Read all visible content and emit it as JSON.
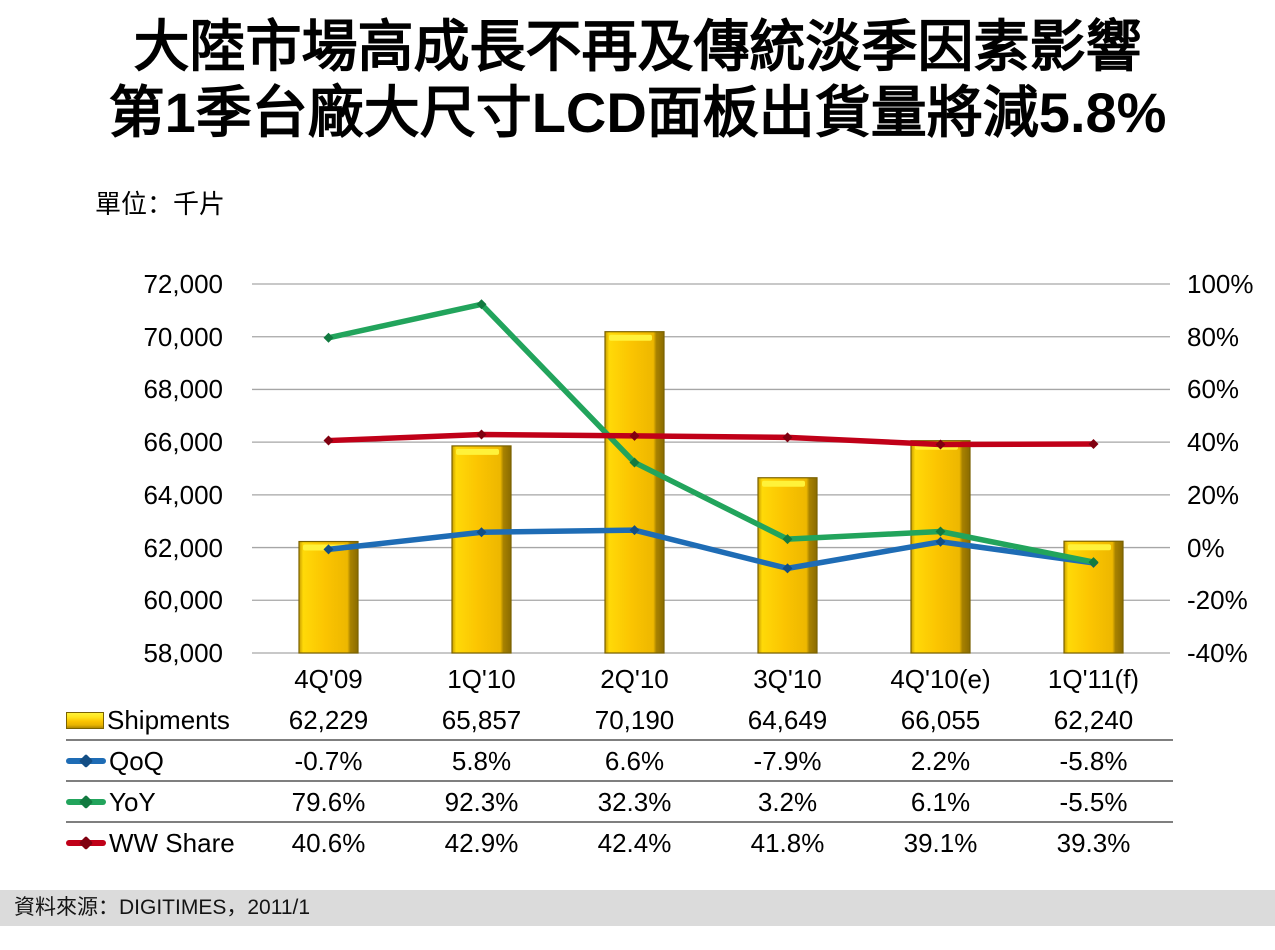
{
  "header": {
    "title_line1": "大陸市場高成長不再及傳統淡季因素影響",
    "title_line2": "第1季台廠大尺寸LCD面板出貨量將減5.8%",
    "unit_label": "單位：千片"
  },
  "source": {
    "text": "資料來源：DIGITIMES，2011/1"
  },
  "chart_data": {
    "type": "combo-bar-line",
    "categories": [
      "4Q'09",
      "1Q'10",
      "2Q'10",
      "3Q'10",
      "4Q'10(e)",
      "1Q'11(f)"
    ],
    "bar_series": {
      "name": "Shipments",
      "axis": "left",
      "icon": "bar-swatch-icon",
      "color": "#FBC401",
      "highlight_color": "#FFF23A",
      "edge_color": "#7A6200",
      "values": [
        62229,
        65857,
        70190,
        64649,
        66055,
        62240
      ]
    },
    "line_series": [
      {
        "name": "QoQ",
        "axis": "right",
        "icon": "line-swatch-icon",
        "color": "#1E6CB5",
        "marker_color": "#134E85",
        "values": [
          -0.7,
          5.8,
          6.6,
          -7.9,
          2.2,
          -5.8
        ]
      },
      {
        "name": "YoY",
        "axis": "right",
        "icon": "line-swatch-icon",
        "color": "#22A45C",
        "marker_color": "#127A40",
        "values": [
          79.6,
          92.3,
          32.3,
          3.2,
          6.1,
          -5.5
        ]
      },
      {
        "name": "WW Share",
        "axis": "right",
        "icon": "line-swatch-icon",
        "color": "#C00018",
        "marker_color": "#800010",
        "values": [
          40.6,
          42.9,
          42.4,
          41.8,
          39.1,
          39.3
        ]
      }
    ],
    "left_axis": {
      "min": 58000,
      "max": 72000,
      "step": 2000,
      "tick_labels": [
        "72,000",
        "70,000",
        "68,000",
        "66,000",
        "64,000",
        "62,000",
        "60,000",
        "58,000"
      ]
    },
    "right_axis": {
      "min": -40,
      "max": 100,
      "step": 20,
      "tick_labels": [
        "100%",
        "80%",
        "60%",
        "40%",
        "20%",
        "0%",
        "-20%",
        "-40%"
      ]
    },
    "grid": "horizontal",
    "gridline_color": "#A6A6A6",
    "legend_position": "table-left",
    "data_table": {
      "rows": [
        {
          "label": "Shipments",
          "values": [
            "62,229",
            "65,857",
            "70,190",
            "64,649",
            "66,055",
            "62,240"
          ]
        },
        {
          "label": "QoQ",
          "values": [
            "-0.7%",
            "5.8%",
            "6.6%",
            "-7.9%",
            "2.2%",
            "-5.8%"
          ]
        },
        {
          "label": "YoY",
          "values": [
            "79.6%",
            "92.3%",
            "32.3%",
            "3.2%",
            "6.1%",
            "-5.5%"
          ]
        },
        {
          "label": "WW Share",
          "values": [
            "40.6%",
            "42.9%",
            "42.4%",
            "41.8%",
            "39.1%",
            "39.3%"
          ]
        }
      ]
    }
  }
}
